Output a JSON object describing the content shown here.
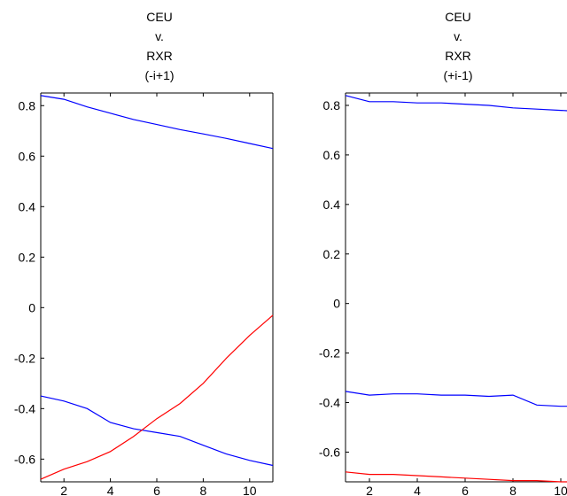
{
  "chart_data": [
    {
      "type": "line",
      "title_lines": [
        "CEU",
        "v.",
        "RXR",
        "(-i+1)"
      ],
      "xlabel": "",
      "ylabel": "",
      "xlim": [
        1,
        11
      ],
      "ylim": [
        -0.69,
        0.85
      ],
      "xticks": [
        2,
        4,
        6,
        8,
        10
      ],
      "xtick_labels": [
        "2",
        "4",
        "6",
        "8",
        "10"
      ],
      "yticks": [
        0.8,
        0.6,
        0.4,
        0.2,
        0,
        -0.2,
        -0.4,
        -0.6
      ],
      "ytick_labels": [
        "0.8",
        "0.6",
        "0.4",
        "0.2",
        "0",
        "-0.2",
        "-0.4",
        "-0.6"
      ],
      "grid": false,
      "series": [
        {
          "color": "#0000ff",
          "x": [
            1,
            2,
            3,
            4,
            5,
            6,
            7,
            8,
            9,
            10,
            11
          ],
          "y": [
            0.84,
            0.825,
            0.795,
            0.77,
            0.745,
            0.725,
            0.705,
            0.688,
            0.67,
            0.65,
            0.63
          ]
        },
        {
          "color": "#0000ff",
          "x": [
            1,
            2,
            3,
            4,
            5,
            6,
            7,
            8,
            9,
            10,
            11
          ],
          "y": [
            -0.35,
            -0.37,
            -0.4,
            -0.455,
            -0.48,
            -0.495,
            -0.51,
            -0.545,
            -0.58,
            -0.605,
            -0.625
          ]
        },
        {
          "color": "#ff0000",
          "x": [
            1,
            2,
            3,
            4,
            5,
            6,
            7,
            8,
            9,
            10,
            11
          ],
          "y": [
            -0.68,
            -0.64,
            -0.61,
            -0.57,
            -0.51,
            -0.44,
            -0.38,
            -0.3,
            -0.2,
            -0.11,
            -0.03
          ]
        }
      ]
    },
    {
      "type": "line",
      "title_lines": [
        "CEU",
        "v.",
        "RXR",
        "(+i-1)"
      ],
      "xlabel": "",
      "ylabel": "",
      "xlim": [
        1,
        11
      ],
      "ylim": [
        -0.72,
        0.85
      ],
      "xticks": [
        2,
        4,
        6,
        8,
        10
      ],
      "xtick_labels": [
        "2",
        "4",
        "6",
        "8",
        "10"
      ],
      "yticks": [
        0.8,
        0.6,
        0.4,
        0.2,
        0,
        -0.2,
        -0.4,
        -0.6
      ],
      "ytick_labels": [
        "0.8",
        "0.6",
        "0.4",
        "0.2",
        "0",
        "-0.2",
        "-0.4",
        "-0.6"
      ],
      "grid": false,
      "series": [
        {
          "color": "#0000ff",
          "x": [
            1,
            2,
            3,
            4,
            5,
            6,
            7,
            8,
            9,
            10,
            11
          ],
          "y": [
            0.84,
            0.815,
            0.815,
            0.81,
            0.81,
            0.805,
            0.8,
            0.79,
            0.785,
            0.78,
            0.775
          ]
        },
        {
          "color": "#0000ff",
          "x": [
            1,
            2,
            3,
            4,
            5,
            6,
            7,
            8,
            9,
            10,
            11
          ],
          "y": [
            -0.355,
            -0.37,
            -0.365,
            -0.365,
            -0.37,
            -0.37,
            -0.375,
            -0.37,
            -0.41,
            -0.415,
            -0.415
          ]
        },
        {
          "color": "#ff0000",
          "x": [
            1,
            2,
            3,
            4,
            5,
            6,
            7,
            8,
            9,
            10,
            11
          ],
          "y": [
            -0.68,
            -0.69,
            -0.69,
            -0.695,
            -0.7,
            -0.705,
            -0.71,
            -0.715,
            -0.715,
            -0.72,
            -0.72
          ]
        }
      ]
    }
  ]
}
